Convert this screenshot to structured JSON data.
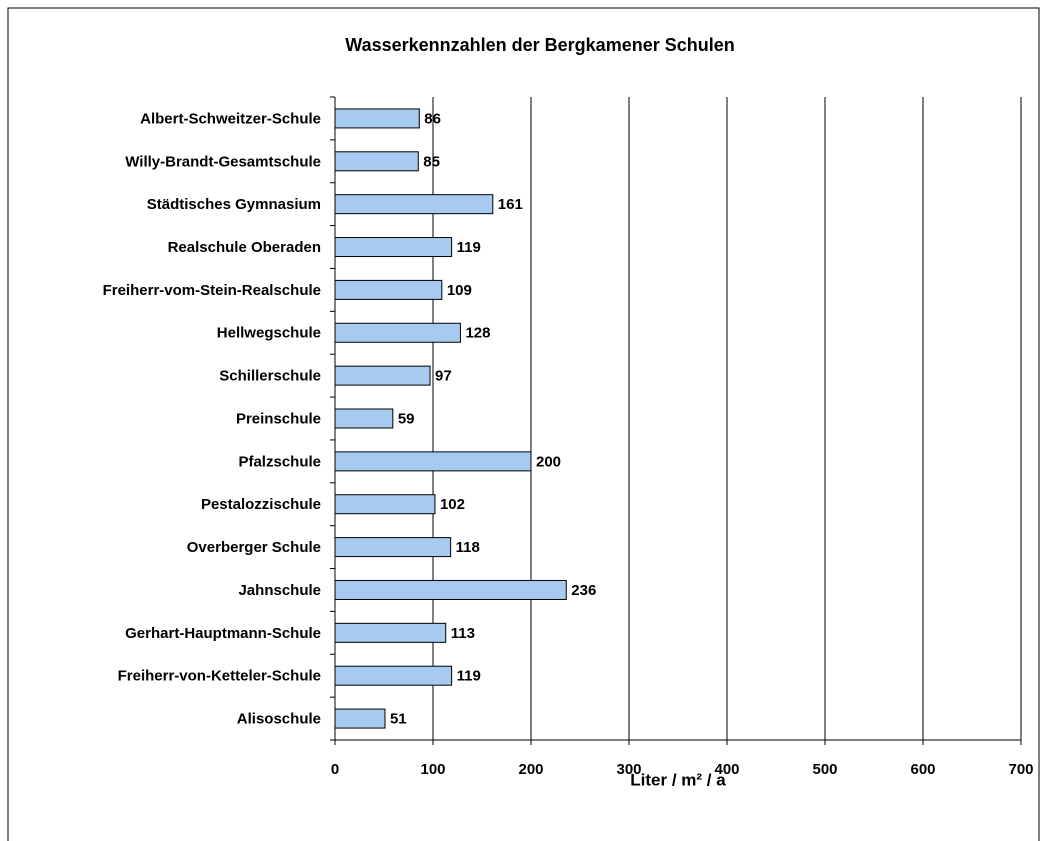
{
  "chart_data": {
    "type": "bar",
    "orientation": "horizontal",
    "title": "Wasserkennzahlen der Bergkamener Schulen",
    "xlabel": "Liter / m² / a",
    "categories": [
      "Albert-Schweitzer-Schule",
      "Willy-Brandt-Gesamtschule",
      "Städtisches Gymnasium",
      "Realschule Oberaden",
      "Freiherr-vom-Stein-Realschule",
      "Hellwegschule",
      "Schillerschule",
      "Preinschule",
      "Pfalzschule",
      "Pestalozzischule",
      "Overberger Schule",
      "Jahnschule",
      "Gerhart-Hauptmann-Schule",
      "Freiherr-von-Ketteler-Schule",
      "Alisoschule"
    ],
    "values": [
      86,
      85,
      161,
      119,
      109,
      128,
      97,
      59,
      200,
      102,
      118,
      236,
      113,
      119,
      51
    ],
    "color": "#a6caf0",
    "xlim": [
      0,
      700
    ],
    "xticks": [
      0,
      100,
      200,
      300,
      400,
      500,
      600,
      700
    ],
    "grid": true
  }
}
